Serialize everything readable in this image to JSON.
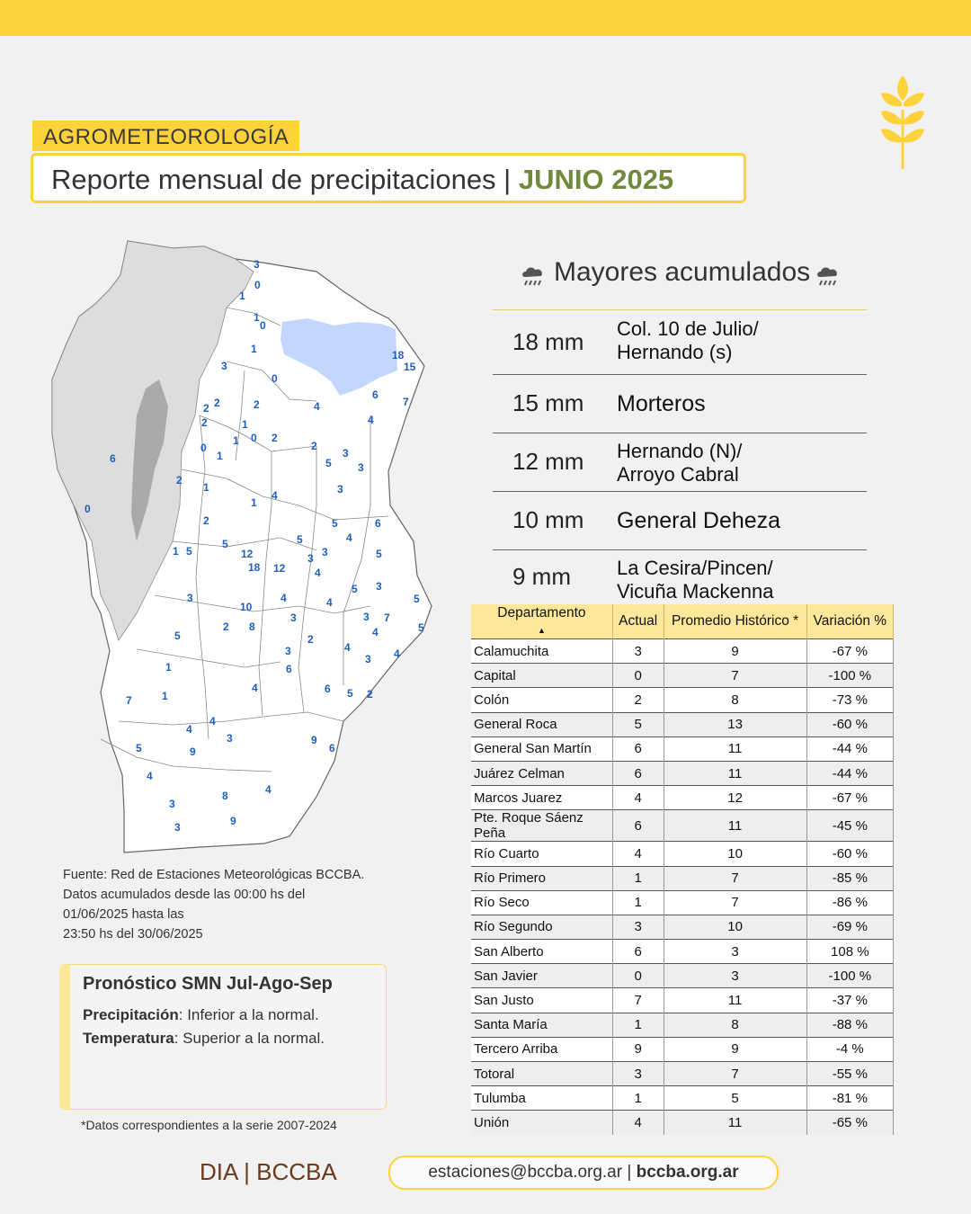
{
  "header": {
    "section": "AGROMETEOROLOGÍA",
    "title": "Reporte mensual de precipitaciones |",
    "month": "JUNIO 2025"
  },
  "top_accumulations": {
    "heading": "Mayores acumulados",
    "rows": [
      {
        "amount": "18 mm",
        "place_line1": "Col. 10 de Julio/",
        "place_line2": "Hernando (s)"
      },
      {
        "amount": "15 mm",
        "place_line1": "Morteros",
        "place_line2": ""
      },
      {
        "amount": "12 mm",
        "place_line1": "Hernando (N)/",
        "place_line2": "Arroyo Cabral"
      },
      {
        "amount": "10 mm",
        "place_line1": "General Deheza",
        "place_line2": ""
      },
      {
        "amount": "9 mm",
        "place_line1": "La Cesira/Pincen/",
        "place_line2": "Vicuña Mackenna"
      }
    ]
  },
  "table": {
    "columns": [
      "Departamento",
      "Actual",
      "Promedio Histórico *",
      "Variación %"
    ],
    "rows": [
      [
        "Calamuchita",
        "3",
        "9",
        "-67 %"
      ],
      [
        "Capital",
        "0",
        "7",
        "-100 %"
      ],
      [
        "Colón",
        "2",
        "8",
        "-73 %"
      ],
      [
        "General Roca",
        "5",
        "13",
        "-60 %"
      ],
      [
        "General San Martín",
        "6",
        "11",
        "-44 %"
      ],
      [
        "Juárez Celman",
        "6",
        "11",
        "-44 %"
      ],
      [
        "Marcos Juarez",
        "4",
        "12",
        "-67 %"
      ],
      [
        "Pte. Roque Sáenz Peña",
        "6",
        "11",
        "-45 %"
      ],
      [
        "Río Cuarto",
        "4",
        "10",
        "-60 %"
      ],
      [
        "Río Primero",
        "1",
        "7",
        "-85 %"
      ],
      [
        "Río Seco",
        "1",
        "7",
        "-86 %"
      ],
      [
        "Río Segundo",
        "3",
        "10",
        "-69 %"
      ],
      [
        "San Alberto",
        "6",
        "3",
        "108 %"
      ],
      [
        "San Javier",
        "0",
        "3",
        "-100 %"
      ],
      [
        "San Justo",
        "7",
        "11",
        "-37 %"
      ],
      [
        "Santa María",
        "1",
        "8",
        "-88 %"
      ],
      [
        "Tercero Arriba",
        "9",
        "9",
        "-4 %"
      ],
      [
        "Totoral",
        "3",
        "7",
        "-55 %"
      ],
      [
        "Tulumba",
        "1",
        "5",
        "-81 %"
      ],
      [
        "Unión",
        "4",
        "11",
        "-65 %"
      ]
    ]
  },
  "map": {
    "station_values": [
      "3",
      "0",
      "1",
      "1",
      "0",
      "0",
      "1",
      "3",
      "0",
      "18",
      "15",
      "6",
      "7",
      "4",
      "4",
      "2",
      "2",
      "2",
      "1",
      "1",
      "0",
      "2",
      "0",
      "1",
      "2",
      "5",
      "3",
      "3",
      "6",
      "2",
      "1",
      "3",
      "1",
      "4",
      "0",
      "2",
      "1",
      "5",
      "5",
      "4",
      "6",
      "5",
      "12",
      "18",
      "12",
      "3",
      "4",
      "5",
      "3",
      "3",
      "4",
      "5",
      "10",
      "8",
      "3",
      "4",
      "4",
      "3",
      "7",
      "5",
      "5",
      "2",
      "3",
      "2",
      "4",
      "4",
      "3",
      "5",
      "6",
      "1",
      "4",
      "6",
      "5",
      "2",
      "7",
      "1",
      "4",
      "4",
      "9",
      "3",
      "9",
      "6",
      "5",
      "4",
      "8",
      "4",
      "3",
      "3",
      "9"
    ]
  },
  "source_note": {
    "line1": "Fuente: Red de Estaciones Meteorológicas BCCBA.",
    "line2": "Datos acumulados desde las 00:00 hs del",
    "line3": "01/06/2025 hasta las",
    "line4": "23:50 hs del 30/06/2025"
  },
  "forecast": {
    "title": "Pronóstico SMN Jul-Ago-Sep",
    "precip_label": "Precipitación",
    "precip_value": ": Inferior a la normal.",
    "temp_label": "Temperatura",
    "temp_value": ": Superior a la normal."
  },
  "footnote": "*Datos correspondientes a la serie 2007-2024",
  "footer": {
    "brand": "DIA | BCCBA",
    "email": "estaciones@bccba.org.ar",
    "separator": " | ",
    "website": "bccba.org.ar"
  },
  "colors": {
    "accent_yellow": "#fdd23a",
    "month_green": "#6e8a3a",
    "brand_brown": "#6b3a1d",
    "station_blue": "#1d5fbf",
    "lake_blue": "#c3d6ff"
  },
  "icons": [
    "wheat-icon",
    "rain-cloud-icon"
  ]
}
